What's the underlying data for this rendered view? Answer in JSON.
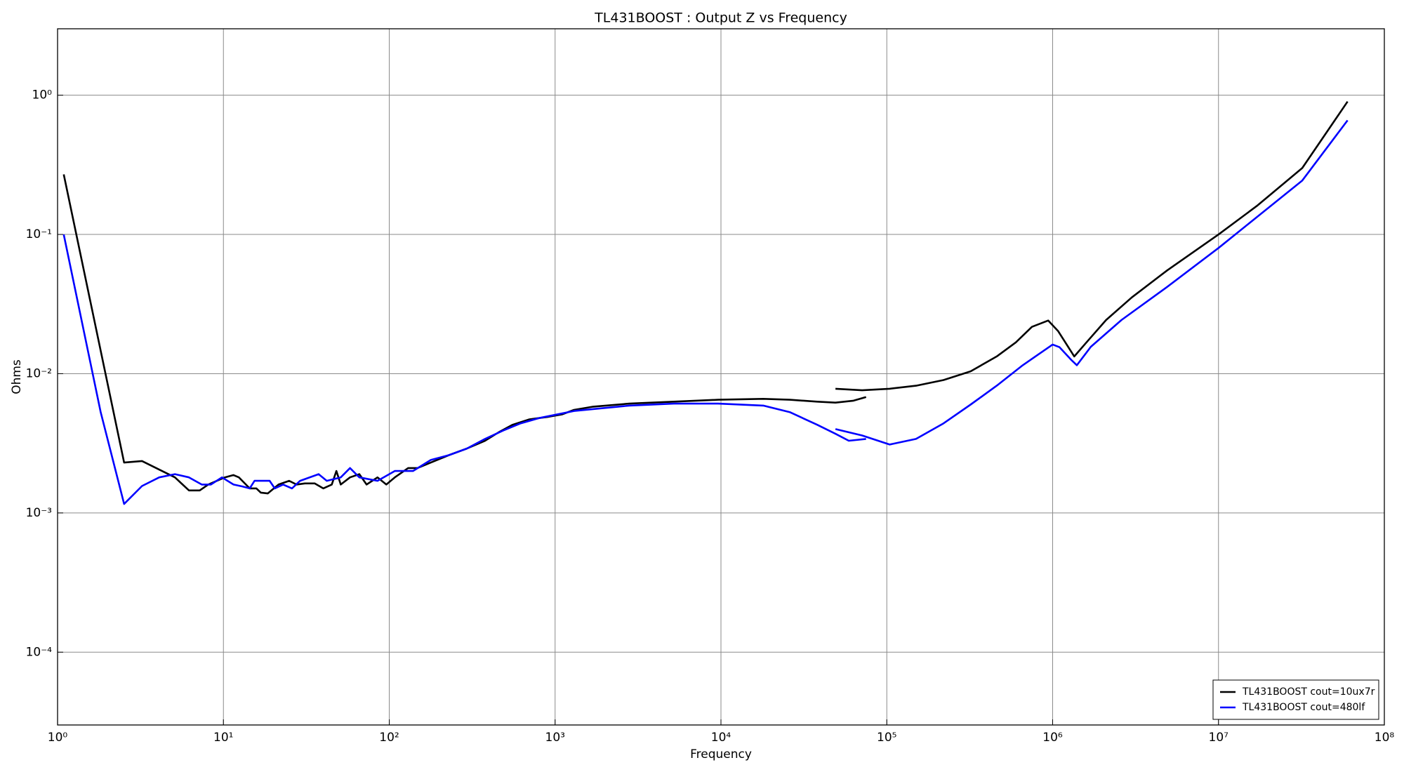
{
  "chart_data": {
    "type": "line",
    "title": "TL431BOOST : Output Z vs Frequency",
    "x_label": "Frequency",
    "y_label": "Ohms",
    "x_scale": "log",
    "y_scale": "log",
    "grid": true,
    "legend_position": "lower right",
    "xlim": [
      1,
      100000000
    ],
    "ylim": [
      3e-05,
      3
    ],
    "xticks": [
      {
        "value": 1,
        "label": "10⁰"
      },
      {
        "value": 10,
        "label": "10¹"
      },
      {
        "value": 100,
        "label": "10²"
      },
      {
        "value": 1000,
        "label": "10³"
      },
      {
        "value": 10000,
        "label": "10⁴"
      },
      {
        "value": 100000,
        "label": "10⁵"
      },
      {
        "value": 1000000,
        "label": "10⁶"
      },
      {
        "value": 10000000,
        "label": "10⁷"
      },
      {
        "value": 100000000,
        "label": "10⁸"
      }
    ],
    "yticks": [
      {
        "value": 0.0001,
        "label": "10⁻⁴"
      },
      {
        "value": 0.001,
        "label": "10⁻³"
      },
      {
        "value": 0.01,
        "label": "10⁻²"
      },
      {
        "value": 0.1,
        "label": "10⁻¹"
      },
      {
        "value": 1,
        "label": "10⁰"
      }
    ],
    "series": [
      {
        "name": "TL431BOOST cout=10ux7r",
        "color": "#000000",
        "x": [
          1.09,
          2.52,
          3.23,
          5.1,
          6.2,
          7.2,
          8.1,
          10.2,
          11.5,
          12.4,
          14.4,
          15.8,
          16.8,
          18.5,
          21.5,
          24.9,
          27.6,
          31,
          35.5,
          40,
          45,
          48,
          51,
          58,
          66,
          73,
          85,
          96,
          108,
          130,
          148,
          178,
          229,
          294,
          378,
          458,
          555,
          700,
          912,
          1100,
          1300,
          1700,
          2800,
          5200,
          9600,
          18000,
          26000,
          38000,
          49000,
          63000,
          75000,
          null,
          49000,
          71000,
          104000,
          150000,
          220000,
          320000,
          460000,
          600000,
          750000,
          940000,
          1080000,
          1350000,
          1600000,
          2100000,
          3000000,
          4900000,
          10000000,
          17000000,
          32000000,
          60000000
        ],
        "values": [
          0.27,
          0.0023,
          0.00236,
          0.0018,
          0.00145,
          0.00145,
          0.0016,
          0.0018,
          0.00187,
          0.0018,
          0.0015,
          0.0015,
          0.0014,
          0.00138,
          0.0016,
          0.0017,
          0.0016,
          0.00163,
          0.00163,
          0.0015,
          0.0016,
          0.002,
          0.0016,
          0.0018,
          0.0019,
          0.0016,
          0.0018,
          0.0016,
          0.0018,
          0.0021,
          0.0021,
          0.0023,
          0.0026,
          0.0029,
          0.0033,
          0.0038,
          0.0043,
          0.0047,
          0.0049,
          0.0051,
          0.0055,
          0.0058,
          0.0061,
          0.0063,
          0.0065,
          0.0066,
          0.0065,
          0.0063,
          0.0062,
          0.0064,
          0.0068,
          null,
          0.0078,
          0.0076,
          0.0078,
          0.0082,
          0.009,
          0.0104,
          0.0133,
          0.0168,
          0.0217,
          0.0241,
          0.0202,
          0.0133,
          0.0168,
          0.0243,
          0.0353,
          0.0552,
          0.1,
          0.16,
          0.3,
          0.9
        ]
      },
      {
        "name": "TL431BOOST cout=480lf",
        "color": "#0000ff",
        "x": [
          1.09,
          1.82,
          2.52,
          3.23,
          4.1,
          5.1,
          6.2,
          7.4,
          8.4,
          9.8,
          11.5,
          13,
          14.4,
          15.4,
          19,
          20.4,
          22.9,
          25.9,
          29,
          37.5,
          42,
          51,
          58,
          66,
          85,
          108,
          139,
          178,
          229,
          294,
          378,
          485,
          620,
          800,
          1300,
          2800,
          5200,
          9600,
          18000,
          26000,
          38000,
          49000,
          59000,
          75000,
          null,
          49000,
          71000,
          104000,
          150000,
          220000,
          320000,
          460000,
          660000,
          1000000,
          1100000,
          1300000,
          1400000,
          1700000,
          2600000,
          4900000,
          10000000,
          17000000,
          32000000,
          60000000
        ],
        "values": [
          0.1,
          0.0053,
          0.00116,
          0.00156,
          0.0018,
          0.0019,
          0.0018,
          0.0016,
          0.0016,
          0.0018,
          0.0016,
          0.00155,
          0.0015,
          0.0017,
          0.0017,
          0.0015,
          0.0016,
          0.0015,
          0.0017,
          0.0019,
          0.0017,
          0.0018,
          0.0021,
          0.0018,
          0.0017,
          0.002,
          0.002,
          0.0024,
          0.0026,
          0.0029,
          0.0034,
          0.0039,
          0.0044,
          0.0048,
          0.0054,
          0.0059,
          0.0061,
          0.0061,
          0.0059,
          0.0053,
          0.0043,
          0.0037,
          0.0033,
          0.0034,
          null,
          0.004,
          0.0036,
          0.0031,
          0.0034,
          0.0044,
          0.006,
          0.0082,
          0.0115,
          0.0162,
          0.0155,
          0.0125,
          0.0115,
          0.0156,
          0.0243,
          0.042,
          0.08,
          0.133,
          0.244,
          0.66
        ]
      }
    ]
  }
}
